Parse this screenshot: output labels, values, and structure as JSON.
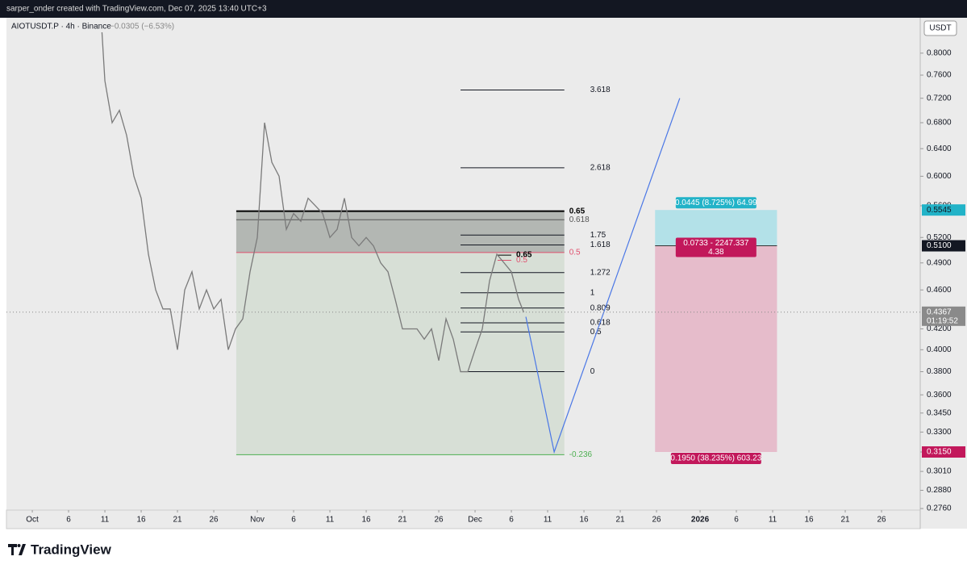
{
  "header": {
    "credit": "sarper_onder created with TradingView.com, Dec 07, 2025 13:40 UTC+3",
    "symbol": "AIOTUSDT.P · 4h · Binance",
    "change": "−0.0305 (−6.53%)",
    "currency": "USDT"
  },
  "footer": {
    "brand": "TradingView"
  },
  "chart_data": {
    "type": "line",
    "log_scale": true,
    "color": "#7a7a7a",
    "x": [
      9.6,
      10,
      11,
      12,
      13,
      14,
      15,
      16,
      17,
      18,
      19,
      20,
      21,
      22,
      23,
      24,
      25,
      26,
      27,
      28,
      29,
      30,
      31,
      32,
      33,
      34,
      35,
      36,
      37,
      38,
      39,
      40,
      41,
      42,
      43,
      44,
      45,
      46,
      47,
      48,
      49,
      50,
      51,
      52,
      53,
      54,
      55,
      56,
      57,
      58,
      59,
      60,
      61,
      62,
      63,
      64,
      65,
      66,
      67,
      67.7
    ],
    "values": [
      0.84,
      0.75,
      0.68,
      0.7,
      0.66,
      0.6,
      0.57,
      0.5,
      0.46,
      0.44,
      0.44,
      0.4,
      0.46,
      0.48,
      0.44,
      0.46,
      0.44,
      0.45,
      0.4,
      0.42,
      0.43,
      0.48,
      0.52,
      0.68,
      0.62,
      0.6,
      0.53,
      0.55,
      0.54,
      0.57,
      0.56,
      0.55,
      0.52,
      0.53,
      0.57,
      0.52,
      0.51,
      0.52,
      0.51,
      0.49,
      0.48,
      0.45,
      0.42,
      0.42,
      0.42,
      0.41,
      0.42,
      0.39,
      0.43,
      0.41,
      0.38,
      0.38,
      0.4,
      0.42,
      0.47,
      0.5,
      0.49,
      0.48,
      0.45,
      0.4367
    ],
    "xlim": [
      -3.56,
      122.33
    ],
    "ylim": [
      0.275,
      0.869
    ],
    "xticks": [
      {
        "value": 0,
        "label": "Oct"
      },
      {
        "value": 5,
        "label": "6"
      },
      {
        "value": 10,
        "label": "11"
      },
      {
        "value": 15,
        "label": "16"
      },
      {
        "value": 20,
        "label": "21"
      },
      {
        "value": 25,
        "label": "26"
      },
      {
        "value": 31,
        "label": "Nov"
      },
      {
        "value": 36,
        "label": "6"
      },
      {
        "value": 41,
        "label": "11"
      },
      {
        "value": 46,
        "label": "16"
      },
      {
        "value": 51,
        "label": "21"
      },
      {
        "value": 56,
        "label": "26"
      },
      {
        "value": 61,
        "label": "Dec"
      },
      {
        "value": 66,
        "label": "6"
      },
      {
        "value": 71,
        "label": "11"
      },
      {
        "value": 76,
        "label": "16"
      },
      {
        "value": 81,
        "label": "21"
      },
      {
        "value": 86,
        "label": "26"
      },
      {
        "value": 92,
        "label": "2026"
      },
      {
        "value": 97,
        "label": "6"
      },
      {
        "value": 102,
        "label": "11"
      },
      {
        "value": 107,
        "label": "16"
      },
      {
        "value": 112,
        "label": "21"
      },
      {
        "value": 117,
        "label": "26"
      }
    ],
    "yticks": [
      {
        "value": 0.8,
        "label": "0.8000"
      },
      {
        "value": 0.76,
        "label": "0.7600"
      },
      {
        "value": 0.72,
        "label": "0.7200"
      },
      {
        "value": 0.68,
        "label": "0.6800"
      },
      {
        "value": 0.64,
        "label": "0.6400"
      },
      {
        "value": 0.6,
        "label": "0.6000"
      },
      {
        "value": 0.56,
        "label": "0.5600"
      },
      {
        "value": 0.52,
        "label": "0.5200"
      },
      {
        "value": 0.49,
        "label": "0.4900"
      },
      {
        "value": 0.46,
        "label": "0.4600"
      },
      {
        "value": 0.42,
        "label": "0.4200"
      },
      {
        "value": 0.4,
        "label": "0.4000"
      },
      {
        "value": 0.38,
        "label": "0.3800"
      },
      {
        "value": 0.36,
        "label": "0.3600"
      },
      {
        "value": 0.345,
        "label": "0.3450"
      },
      {
        "value": 0.33,
        "label": "0.3300"
      },
      {
        "value": 0.315,
        "label": "0.3150"
      },
      {
        "value": 0.301,
        "label": "0.3010"
      },
      {
        "value": 0.288,
        "label": "0.2880"
      },
      {
        "value": 0.276,
        "label": "0.2760"
      }
    ],
    "current_price": {
      "value": 0.4367,
      "label": "0.4367",
      "countdown": "01:19:52"
    },
    "fib_retracement": {
      "x_range": [
        28.1,
        73.3
      ],
      "levels": [
        {
          "label": "0.65",
          "value": 0.553,
          "color": "#000000"
        },
        {
          "label": "0.618",
          "value": 0.542,
          "color": "#555555"
        },
        {
          "label": "0.5",
          "value": 0.502,
          "color": "#e0506e"
        },
        {
          "label": "-0.236",
          "value": 0.313,
          "color": "#4caf50"
        }
      ]
    },
    "fib_mini": {
      "x_range": [
        64.1,
        66
      ],
      "levels": [
        {
          "label": "0.65",
          "value": 0.499,
          "color": "#000000"
        },
        {
          "label": "0.5",
          "value": 0.493,
          "color": "#e0506e"
        }
      ]
    },
    "fib_extension": {
      "x_range": [
        59,
        73.3
      ],
      "levels": [
        {
          "label": "3.618",
          "value": 0.734
        },
        {
          "label": "2.618",
          "value": 0.612
        },
        {
          "label": "1.75",
          "value": 0.523
        },
        {
          "label": "1.618",
          "value": 0.511
        },
        {
          "label": "1.272",
          "value": 0.479
        },
        {
          "label": "1",
          "value": 0.457
        },
        {
          "label": "0.809",
          "value": 0.441
        },
        {
          "label": "0.618",
          "value": 0.426
        },
        {
          "label": "0.5",
          "value": 0.417
        },
        {
          "label": "0",
          "value": 0.38
        }
      ]
    },
    "projection": {
      "x": [
        68,
        71.9,
        89.2
      ],
      "values": [
        0.432,
        0.315,
        0.72
      ],
      "color": "#4a77e6"
    },
    "position": {
      "x_range": [
        85.8,
        102.6
      ],
      "target": {
        "value": 0.5545,
        "label": "0.5545"
      },
      "entry": {
        "value": 0.51,
        "label": "0.5100"
      },
      "stop": {
        "value": 0.315,
        "label": "0.3150"
      },
      "target_text": "0.0445 (8.725%) 64.99",
      "entry_text": "0.0733 - 2247.337",
      "entry_text2": "4.38",
      "stop_text": "0.1950 (38.235%) 603.23"
    }
  }
}
